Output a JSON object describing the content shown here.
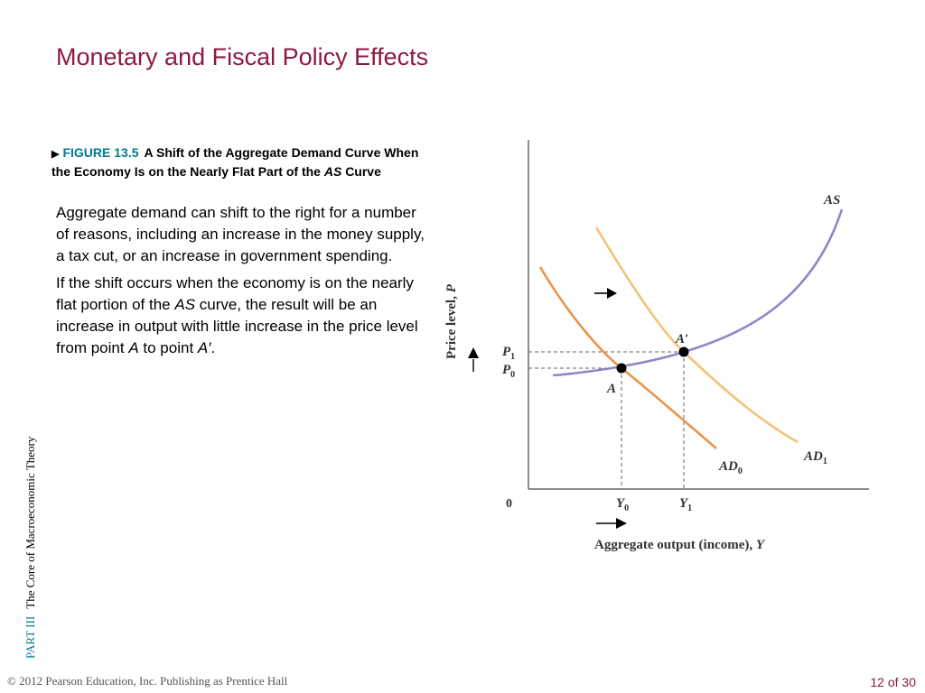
{
  "slide": {
    "title": "Monetary and Fiscal Policy Effects",
    "page_number": "12 of 30",
    "copyright": "© 2012 Pearson Education, Inc. Publishing as Prentice Hall",
    "side_part": "PART",
    "side_part_num": "III",
    "side_part_title": "The Core of Macroeconomic Theory"
  },
  "figure": {
    "number": "FIGURE 13.5",
    "caption_main": "A Shift of the Aggregate Demand Curve When the Economy Is on the Nearly Flat Part of the",
    "caption_italic": "AS",
    "caption_end": "Curve",
    "para1": "Aggregate demand can shift to the right for a number of reasons, including an increase in the money supply, a tax cut, or an increase in government spending.",
    "para2_a": "If the shift occurs when the economy is on the nearly flat portion of the",
    "para2_as": "AS",
    "para2_b": "curve, the result will be an increase in output with little increase in the price level from point",
    "para2_A": "A",
    "para2_c": "to point",
    "para2_Aprime": "A′",
    "para2_end": "."
  },
  "diagram": {
    "y_axis_label": "Price level,",
    "y_axis_var": "P",
    "x_axis_label": "Aggregate output (income),",
    "x_axis_var": "Y",
    "origin": "0",
    "curve_as": "AS",
    "curve_ad0": "AD",
    "curve_ad0_sub": "0",
    "curve_ad1": "AD",
    "curve_ad1_sub": "1",
    "point_a": "A",
    "point_a_prime": "A′",
    "p1": "P",
    "p1_sub": "1",
    "p0": "P",
    "p0_sub": "0",
    "y0": "Y",
    "y0_sub": "0",
    "y1": "Y",
    "y1_sub": "1",
    "colors": {
      "as_curve": "#8e86c8",
      "ad0_curve": "#e8944a",
      "ad1_curve": "#f3c27a",
      "axis": "#444444",
      "guide": "#555555"
    }
  }
}
